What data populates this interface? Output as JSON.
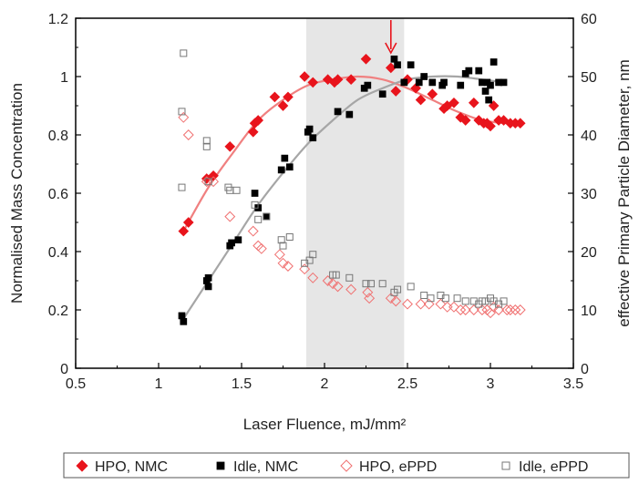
{
  "chart_data": {
    "type": "scatter",
    "xlabel": "Laser Fluence, mJ/mm²",
    "ylabel": "Normalised Mass Concentration",
    "y2label": "effective Primary Particle Diameter, nm",
    "xlim": [
      0.5,
      3.5
    ],
    "ylim": [
      0,
      1.2
    ],
    "y2lim": [
      0,
      60
    ],
    "x_ticks": [
      "0.5",
      "1",
      "1.5",
      "2",
      "2.5",
      "3",
      "3.5"
    ],
    "y_ticks": [
      "0",
      "0.2",
      "0.4",
      "0.6",
      "0.8",
      "1",
      "1.2"
    ],
    "y2_ticks": [
      "0",
      "10",
      "20",
      "30",
      "40",
      "50",
      "60"
    ],
    "grid": false,
    "legend_position": "bottom",
    "shaded_region": [
      1.89,
      2.48
    ],
    "arrow_at_x": 2.4,
    "colors": {
      "hpo": "#e8141c",
      "idle": "#000000",
      "hpo_fit": "#f08080",
      "idle_fit": "#a6a6a6",
      "shade": "#e6e6e6"
    },
    "series": [
      {
        "name": "HPO, NMC",
        "marker": "diamond-filled",
        "axis": "left",
        "points": [
          [
            1.15,
            0.47
          ],
          [
            1.18,
            0.5
          ],
          [
            1.29,
            0.65
          ],
          [
            1.33,
            0.66
          ],
          [
            1.43,
            0.76
          ],
          [
            1.57,
            0.81
          ],
          [
            1.58,
            0.84
          ],
          [
            1.6,
            0.85
          ],
          [
            1.7,
            0.93
          ],
          [
            1.75,
            0.9
          ],
          [
            1.78,
            0.93
          ],
          [
            1.88,
            1.0
          ],
          [
            1.93,
            0.98
          ],
          [
            2.02,
            0.99
          ],
          [
            2.06,
            0.98
          ],
          [
            2.08,
            0.99
          ],
          [
            2.16,
            0.99
          ],
          [
            2.25,
            1.06
          ],
          [
            2.4,
            1.03
          ],
          [
            2.43,
            0.95
          ],
          [
            2.5,
            0.99
          ],
          [
            2.55,
            0.96
          ],
          [
            2.58,
            0.92
          ],
          [
            2.65,
            0.94
          ],
          [
            2.72,
            0.89
          ],
          [
            2.74,
            0.9
          ],
          [
            2.78,
            0.91
          ],
          [
            2.82,
            0.86
          ],
          [
            2.85,
            0.85
          ],
          [
            2.9,
            0.91
          ],
          [
            2.93,
            0.85
          ],
          [
            2.96,
            0.84
          ],
          [
            2.98,
            0.84
          ],
          [
            3.0,
            0.83
          ],
          [
            3.02,
            0.9
          ],
          [
            3.05,
            0.85
          ],
          [
            3.08,
            0.85
          ],
          [
            3.12,
            0.84
          ],
          [
            3.15,
            0.84
          ],
          [
            3.18,
            0.84
          ]
        ]
      },
      {
        "name": "Idle, NMC",
        "marker": "square-filled",
        "axis": "left",
        "points": [
          [
            1.14,
            0.18
          ],
          [
            1.15,
            0.16
          ],
          [
            1.29,
            0.3
          ],
          [
            1.3,
            0.28
          ],
          [
            1.3,
            0.31
          ],
          [
            1.43,
            0.42
          ],
          [
            1.44,
            0.43
          ],
          [
            1.48,
            0.44
          ],
          [
            1.58,
            0.6
          ],
          [
            1.6,
            0.55
          ],
          [
            1.65,
            0.52
          ],
          [
            1.74,
            0.68
          ],
          [
            1.76,
            0.72
          ],
          [
            1.79,
            0.69
          ],
          [
            1.9,
            0.81
          ],
          [
            1.91,
            0.82
          ],
          [
            1.93,
            0.79
          ],
          [
            2.08,
            0.88
          ],
          [
            2.15,
            0.87
          ],
          [
            2.24,
            0.96
          ],
          [
            2.26,
            0.97
          ],
          [
            2.35,
            0.94
          ],
          [
            2.42,
            1.06
          ],
          [
            2.44,
            1.04
          ],
          [
            2.48,
            0.98
          ],
          [
            2.52,
            1.04
          ],
          [
            2.57,
            0.98
          ],
          [
            2.6,
            1.0
          ],
          [
            2.65,
            0.98
          ],
          [
            2.71,
            0.97
          ],
          [
            2.72,
            0.98
          ],
          [
            2.82,
            0.97
          ],
          [
            2.85,
            1.01
          ],
          [
            2.87,
            1.02
          ],
          [
            2.93,
            1.02
          ],
          [
            2.95,
            0.98
          ],
          [
            2.97,
            0.95
          ],
          [
            2.98,
            0.98
          ],
          [
            2.99,
            0.92
          ],
          [
            3.0,
            0.97
          ],
          [
            3.02,
            1.05
          ],
          [
            3.05,
            0.98
          ],
          [
            3.08,
            0.98
          ]
        ]
      },
      {
        "name": "HPO, ePPD",
        "marker": "diamond-open",
        "axis": "right",
        "points": [
          [
            1.15,
            43
          ],
          [
            1.18,
            40
          ],
          [
            1.29,
            32
          ],
          [
            1.33,
            32
          ],
          [
            1.43,
            26
          ],
          [
            1.57,
            23.5
          ],
          [
            1.6,
            21
          ],
          [
            1.62,
            20.5
          ],
          [
            1.73,
            19.5
          ],
          [
            1.75,
            18
          ],
          [
            1.78,
            17.5
          ],
          [
            1.88,
            17
          ],
          [
            1.93,
            15.5
          ],
          [
            2.02,
            15
          ],
          [
            2.05,
            14.5
          ],
          [
            2.08,
            14
          ],
          [
            2.16,
            13.5
          ],
          [
            2.26,
            13
          ],
          [
            2.27,
            12
          ],
          [
            2.4,
            12
          ],
          [
            2.43,
            11.5
          ],
          [
            2.5,
            11
          ],
          [
            2.58,
            11
          ],
          [
            2.63,
            11
          ],
          [
            2.7,
            11
          ],
          [
            2.74,
            10.5
          ],
          [
            2.78,
            10.5
          ],
          [
            2.82,
            10
          ],
          [
            2.85,
            10
          ],
          [
            2.9,
            10
          ],
          [
            2.95,
            10
          ],
          [
            2.98,
            10
          ],
          [
            3.0,
            9.5
          ],
          [
            3.02,
            10.5
          ],
          [
            3.05,
            10
          ],
          [
            3.1,
            10
          ],
          [
            3.12,
            10
          ],
          [
            3.15,
            10
          ],
          [
            3.18,
            10
          ]
        ]
      },
      {
        "name": "Idle, ePPD",
        "marker": "square-open",
        "axis": "right",
        "points": [
          [
            1.15,
            54
          ],
          [
            1.14,
            44
          ],
          [
            1.14,
            31
          ],
          [
            1.29,
            38
          ],
          [
            1.29,
            39
          ],
          [
            1.3,
            32
          ],
          [
            1.42,
            31
          ],
          [
            1.43,
            30.5
          ],
          [
            1.47,
            30.5
          ],
          [
            1.58,
            28
          ],
          [
            1.6,
            25.5
          ],
          [
            1.65,
            26
          ],
          [
            1.74,
            22
          ],
          [
            1.75,
            21
          ],
          [
            1.79,
            22.5
          ],
          [
            1.88,
            18
          ],
          [
            1.91,
            18.5
          ],
          [
            1.93,
            19.5
          ],
          [
            2.05,
            16
          ],
          [
            2.07,
            16
          ],
          [
            2.15,
            15.5
          ],
          [
            2.25,
            14.5
          ],
          [
            2.28,
            14.5
          ],
          [
            2.35,
            14.5
          ],
          [
            2.42,
            13
          ],
          [
            2.44,
            13.5
          ],
          [
            2.52,
            14
          ],
          [
            2.6,
            12.5
          ],
          [
            2.64,
            12
          ],
          [
            2.7,
            12.5
          ],
          [
            2.73,
            12
          ],
          [
            2.8,
            12
          ],
          [
            2.85,
            11.5
          ],
          [
            2.9,
            11.5
          ],
          [
            2.93,
            11
          ],
          [
            2.95,
            11.5
          ],
          [
            2.97,
            11.5
          ],
          [
            3.0,
            12
          ],
          [
            3.02,
            11.5
          ],
          [
            3.05,
            11
          ],
          [
            3.08,
            11.5
          ]
        ]
      }
    ],
    "fit_curves": [
      {
        "name": "HPO, NMC fit",
        "color": "#f08080",
        "axis": "left",
        "points": [
          [
            1.15,
            0.47
          ],
          [
            1.3,
            0.62
          ],
          [
            1.45,
            0.74
          ],
          [
            1.6,
            0.85
          ],
          [
            1.75,
            0.92
          ],
          [
            1.9,
            0.97
          ],
          [
            2.05,
            0.99
          ],
          [
            2.2,
            1.0
          ],
          [
            2.35,
            0.99
          ],
          [
            2.5,
            0.96
          ],
          [
            2.65,
            0.92
          ],
          [
            2.8,
            0.88
          ],
          [
            2.95,
            0.85
          ],
          [
            3.1,
            0.84
          ],
          [
            3.18,
            0.84
          ]
        ]
      },
      {
        "name": "Idle, NMC fit",
        "color": "#a6a6a6",
        "axis": "left",
        "points": [
          [
            1.15,
            0.17
          ],
          [
            1.3,
            0.3
          ],
          [
            1.45,
            0.43
          ],
          [
            1.6,
            0.56
          ],
          [
            1.75,
            0.67
          ],
          [
            1.9,
            0.77
          ],
          [
            2.05,
            0.85
          ],
          [
            2.2,
            0.92
          ],
          [
            2.35,
            0.96
          ],
          [
            2.5,
            0.99
          ],
          [
            2.65,
            1.0
          ],
          [
            2.8,
            1.0
          ],
          [
            2.95,
            0.99
          ],
          [
            3.08,
            0.98
          ]
        ]
      }
    ]
  }
}
